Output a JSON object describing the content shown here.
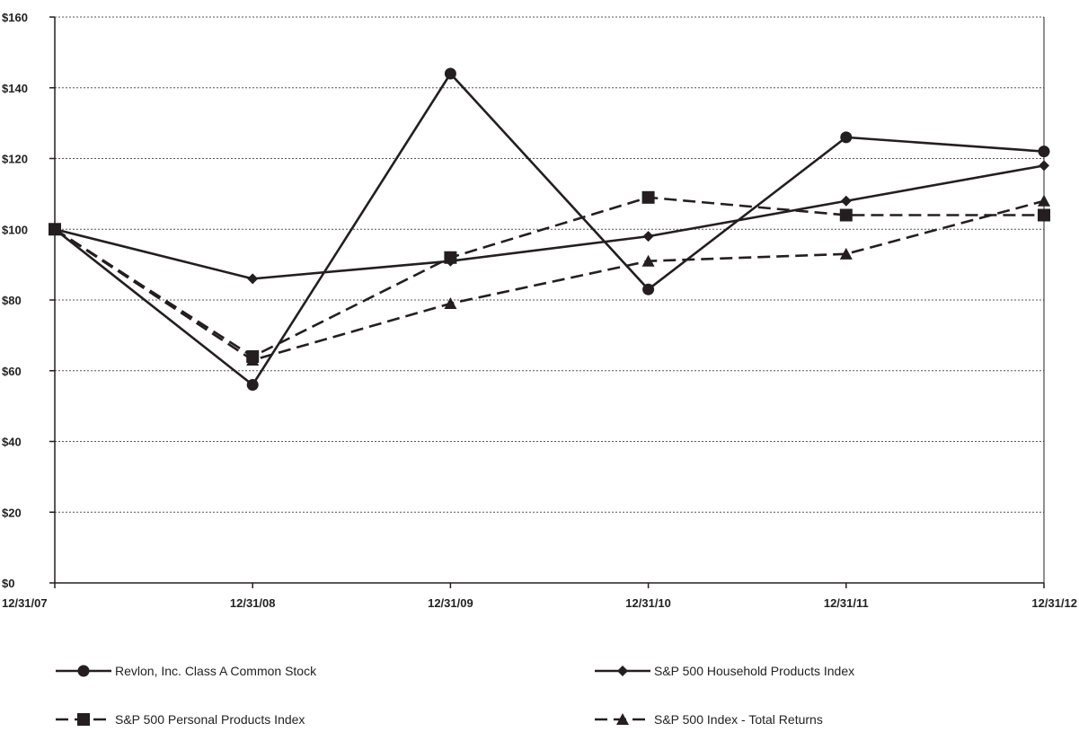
{
  "chart_data": {
    "type": "line",
    "categories": [
      "12/31/07",
      "12/31/08",
      "12/31/09",
      "12/31/10",
      "12/31/11",
      "12/31/12"
    ],
    "y_tick_labels": [
      "$0",
      "$20",
      "$40",
      "$60",
      "$80",
      "$100",
      "$120",
      "$140",
      "$160"
    ],
    "ylim": [
      0,
      160
    ],
    "grid": true,
    "legend_position": "bottom",
    "series": [
      {
        "name": "Revlon, Inc. Class A Common Stock",
        "marker": "circle",
        "dash": "solid",
        "values": [
          100,
          56,
          144,
          83,
          126,
          122
        ]
      },
      {
        "name": "S&P 500 Household Products Index",
        "marker": "diamond",
        "dash": "solid",
        "values": [
          100,
          86,
          91,
          98,
          108,
          118
        ]
      },
      {
        "name": "S&P 500 Personal Products Index",
        "marker": "square",
        "dash": "dashed",
        "values": [
          100,
          64,
          92,
          109,
          104,
          104
        ]
      },
      {
        "name": "S&P 500 Index - Total Returns",
        "marker": "triangle",
        "dash": "dashed",
        "values": [
          100,
          63,
          79,
          91,
          93,
          108
        ]
      }
    ],
    "colors": {
      "line": "#231f20",
      "grid": "#555555"
    }
  }
}
